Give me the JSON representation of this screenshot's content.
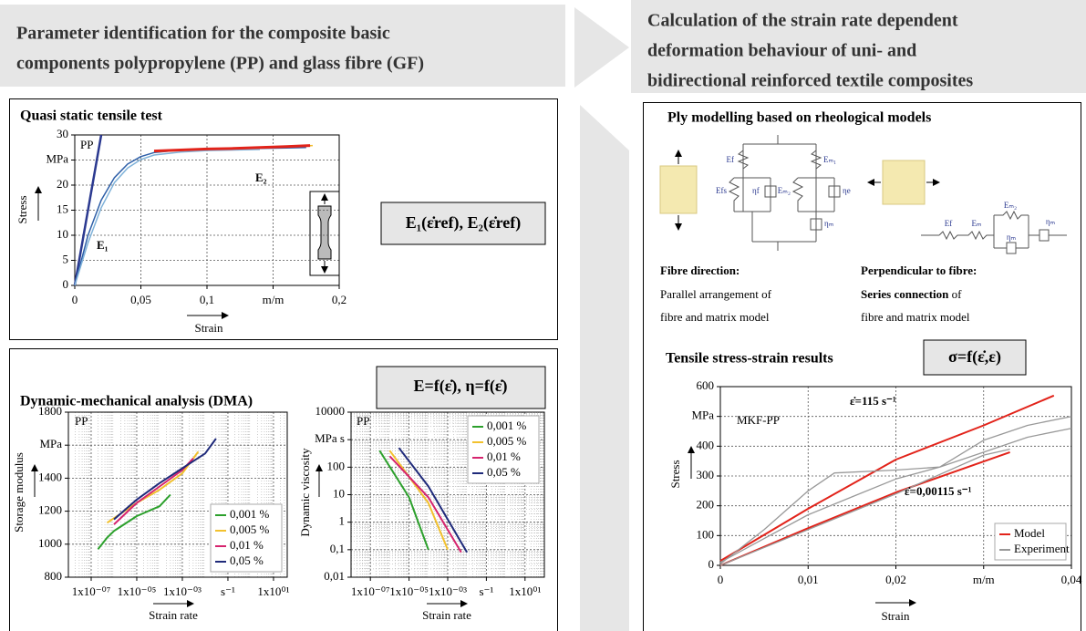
{
  "header_left": [
    "Parameter identification for the composite basic",
    "components polypropylene (PP) and glass fibre (GF)"
  ],
  "header_right": [
    "Calculation of the strain rate dependent",
    "deformation behaviour of uni- and",
    "bidirectional reinforced textile composites"
  ],
  "tensile_panel": {
    "title": "Quasi static tensile test",
    "formula": "E₁(ε̇ref), E₂(ε̇ref)"
  },
  "dma_panel": {
    "title": "Dynamic-mechanical analysis (DMA)",
    "formula": "E=f(ε̇), η=f(ε̇)"
  },
  "ply_panel": {
    "title": "Ply modelling based on rheological models",
    "diagram1_labels": [
      "Ef",
      "Eₘ₁",
      "Efs",
      "ηf",
      "Eₘ₂",
      "ηe",
      "ηₘ"
    ],
    "diagram2_labels": [
      "Eₘ₂",
      "Ef",
      "Eₘ",
      "ηₘ",
      "ηₘ"
    ],
    "fibre_heading": "Fibre direction:",
    "fibre_text": [
      "Parallel arrangement of",
      "fibre and matrix model"
    ],
    "perp_heading": "Perpendicular to fibre:",
    "perp_bold": "Series connection",
    "perp_rest": "of",
    "perp_line2": "fibre and matrix model"
  },
  "results_panel": {
    "title": "Tensile stress-strain results",
    "formula": "σ=f(ε̇,ε)"
  },
  "chart_data": [
    {
      "type": "line",
      "xlabel": "Strain",
      "ylabel": "Stress",
      "grid": true,
      "xlim": [
        0,
        0.2
      ],
      "xticks": [
        0,
        {
          "value": 0.05,
          "label": "0,05"
        },
        {
          "value": 0.1,
          "label": "0,1"
        },
        {
          "value": 0.15,
          "label": "m/m"
        },
        {
          "value": 0.2,
          "label": "0,2"
        }
      ],
      "ylim": [
        0,
        30
      ],
      "yticks": [
        0,
        5,
        10,
        15,
        20,
        {
          "value": 25,
          "label": "MPa"
        },
        30
      ],
      "annotations": [
        {
          "text": "PP",
          "color": "#000"
        },
        {
          "text": "E₁",
          "color": "#2b3990"
        },
        {
          "text": "E₂",
          "color": "#e2231a"
        }
      ],
      "series": [
        {
          "color": "#2b3990",
          "width": 2.5,
          "x": [
            0,
            0.02
          ],
          "values": [
            0,
            30
          ]
        },
        {
          "color": "#2e5fa8",
          "width": 1.5,
          "x": [
            0,
            0.01,
            0.02,
            0.03,
            0.04,
            0.05,
            0.06,
            0.08,
            0.1,
            0.12,
            0.14,
            0.16,
            0.175
          ],
          "values": [
            0,
            10,
            17,
            21.5,
            24.2,
            25.7,
            26.5,
            27,
            27.1,
            27.2,
            27.3,
            27.4,
            27.5
          ]
        },
        {
          "color": "#7fb2d9",
          "width": 1.5,
          "x": [
            0,
            0.01,
            0.02,
            0.03,
            0.04,
            0.05,
            0.06,
            0.08,
            0.1,
            0.12,
            0.14
          ],
          "values": [
            0,
            8.5,
            15.5,
            20.5,
            23.4,
            25.1,
            26,
            26.6,
            26.9,
            27,
            27.1
          ]
        },
        {
          "color": "#f2c12e",
          "width": 1.5,
          "x": [
            0.06,
            0.1,
            0.14,
            0.18
          ],
          "values": [
            26.7,
            27.1,
            27.4,
            27.9
          ]
        },
        {
          "color": "#e2231a",
          "width": 3,
          "x": [
            0.06,
            0.08,
            0.1,
            0.12,
            0.14,
            0.16,
            0.178
          ],
          "values": [
            26.8,
            27,
            27.2,
            27.3,
            27.5,
            27.7,
            27.9
          ]
        }
      ]
    },
    {
      "type": "line",
      "xlabel": "Strain rate",
      "ylabel": "Storage modulus",
      "grid": true,
      "xlog": true,
      "legend": "lower right",
      "xlim": [
        1e-08,
        40
      ],
      "xticks": [
        {
          "value": 1e-07,
          "label": "1x10⁻⁰⁷"
        },
        {
          "value": 1e-05,
          "label": "1x10⁻⁰⁵"
        },
        {
          "value": 0.001,
          "label": "1x10⁻⁰³"
        },
        {
          "value": 0.1,
          "label": "s⁻¹"
        },
        {
          "value": 10,
          "label": "1x10⁰¹"
        }
      ],
      "ylim": [
        800,
        1800
      ],
      "yticks": [
        800,
        1000,
        1200,
        1400,
        {
          "value": 1600,
          "label": "MPa"
        },
        1800
      ],
      "annotations": [
        {
          "text": "PP",
          "color": "#000"
        }
      ],
      "series": [
        {
          "name": "0,001 %",
          "color": "#2ca02c",
          "width": 2,
          "x": [
            2e-07,
            5e-07,
            1e-06,
            1e-05,
            0.0001,
            0.0003
          ],
          "values": [
            970,
            1040,
            1080,
            1170,
            1230,
            1300
          ]
        },
        {
          "name": "0,005 %",
          "color": "#f2c12e",
          "width": 2,
          "x": [
            5e-07,
            1e-05,
            0.0001,
            0.001,
            0.005
          ],
          "values": [
            1130,
            1250,
            1330,
            1430,
            1560
          ]
        },
        {
          "name": "0,01 %",
          "color": "#d6246e",
          "width": 2,
          "x": [
            1e-06,
            1e-05,
            0.0001,
            0.001,
            0.003
          ],
          "values": [
            1120,
            1250,
            1350,
            1450,
            1520
          ]
        },
        {
          "name": "0,05 %",
          "color": "#1f2a7a",
          "width": 2,
          "x": [
            1e-06,
            1e-05,
            0.0001,
            0.001,
            0.01,
            0.03
          ],
          "values": [
            1150,
            1270,
            1370,
            1460,
            1550,
            1640
          ]
        }
      ]
    },
    {
      "type": "line",
      "xlabel": "Strain rate",
      "ylabel": "Dynamic viscosity",
      "grid": true,
      "xlog": true,
      "ylog": true,
      "legend": "upper right",
      "xlim": [
        1e-08,
        100
      ],
      "xticks": [
        {
          "value": 1e-07,
          "label": "1x10⁻⁰⁷"
        },
        {
          "value": 1e-05,
          "label": "1x10⁻⁰⁵"
        },
        {
          "value": 0.001,
          "label": "1x10⁻⁰³"
        },
        {
          "value": 0.1,
          "label": "s⁻¹"
        },
        {
          "value": 10,
          "label": "1x10⁰¹"
        }
      ],
      "ylim": [
        0.01,
        10000
      ],
      "yticks": [
        {
          "value": 0.01,
          "label": "0,01"
        },
        {
          "value": 0.1,
          "label": "0,1"
        },
        1,
        10,
        100,
        {
          "value": 1000,
          "label": "MPa s"
        },
        10000
      ],
      "annotations": [
        {
          "text": "PP",
          "color": "#000"
        }
      ],
      "series": [
        {
          "name": "0,001 %",
          "color": "#2ca02c",
          "width": 2,
          "x": [
            3e-07,
            1e-05,
            0.0001
          ],
          "values": [
            400,
            8,
            0.1
          ]
        },
        {
          "name": "0,005 %",
          "color": "#f2c12e",
          "width": 2,
          "x": [
            1e-06,
            0.0001,
            0.001
          ],
          "values": [
            400,
            5,
            0.1
          ]
        },
        {
          "name": "0,01 %",
          "color": "#d6246e",
          "width": 2,
          "x": [
            1e-06,
            0.0001,
            0.005
          ],
          "values": [
            250,
            8,
            0.08
          ]
        },
        {
          "name": "0,05 %",
          "color": "#1f2a7a",
          "width": 2,
          "x": [
            3e-06,
            0.0001,
            0.01
          ],
          "values": [
            500,
            20,
            0.08
          ]
        }
      ]
    },
    {
      "type": "line",
      "xlabel": "Strain",
      "ylabel": "Stress",
      "grid": true,
      "legend": "lower right",
      "xlim": [
        0,
        0.04
      ],
      "xticks": [
        0,
        {
          "value": 0.01,
          "label": "0,01"
        },
        {
          "value": 0.02,
          "label": "0,02"
        },
        {
          "value": 0.03,
          "label": "m/m"
        },
        {
          "value": 0.04,
          "label": "0,04"
        }
      ],
      "ylim": [
        0,
        600
      ],
      "yticks": [
        0,
        100,
        200,
        300,
        400,
        {
          "value": 500,
          "label": "MPa"
        },
        600
      ],
      "annotations": [
        {
          "text": "MKF-PP",
          "color": "#000"
        },
        {
          "text": "ε̇=115 s⁻¹",
          "color": "#000"
        },
        {
          "text": "ε̇=0,00115 s⁻¹",
          "color": "#000"
        }
      ],
      "series": [
        {
          "name": "Model",
          "color": "#e2231a",
          "width": 2,
          "x": [
            0,
            0.01,
            0.02,
            0.03,
            0.038,
            null,
            0,
            0.01,
            0.02,
            0.033
          ],
          "values": [
            15,
            190,
            355,
            470,
            570,
            null,
            0,
            125,
            245,
            380
          ]
        },
        {
          "name": "Experiment",
          "color": "#999",
          "width": 1.3,
          "x": [
            0,
            0.005,
            0.01,
            0.015,
            0.02,
            0.025,
            0.03,
            0.035,
            0.04,
            null,
            0,
            0.005,
            0.01,
            0.013,
            0.02,
            0.025,
            0.03,
            0.035,
            0.04,
            null,
            0,
            0.01,
            0.02,
            0.03,
            0.033
          ],
          "values": [
            10,
            90,
            170,
            230,
            290,
            330,
            380,
            430,
            460,
            null,
            5,
            120,
            250,
            310,
            320,
            330,
            420,
            470,
            500,
            null,
            0,
            120,
            240,
            370,
            390
          ]
        }
      ]
    }
  ]
}
